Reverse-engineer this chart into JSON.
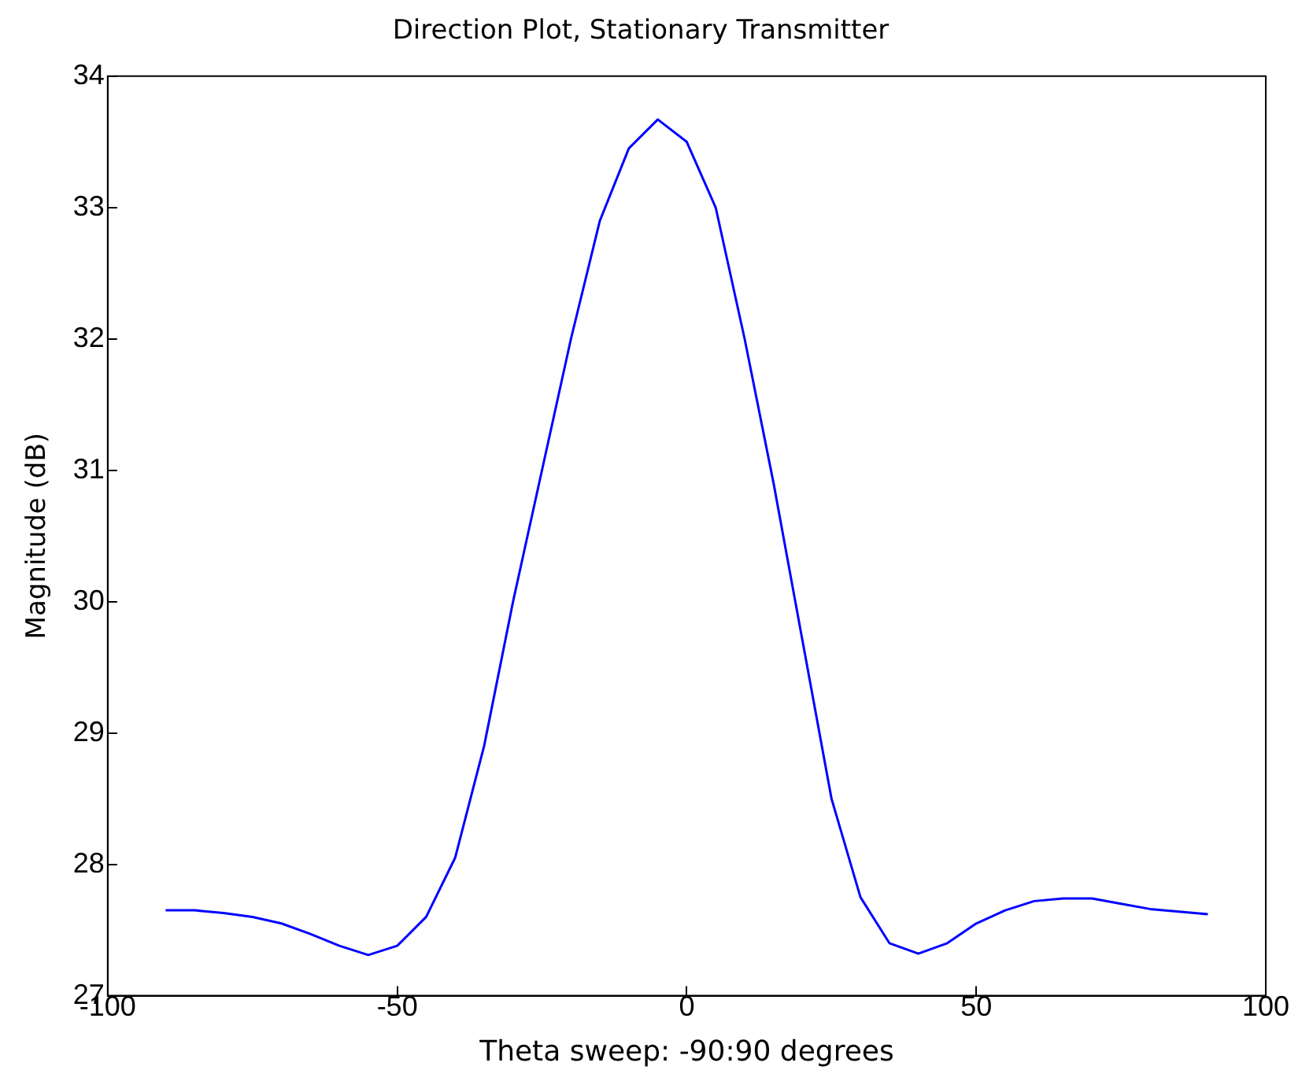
{
  "chart_data": {
    "type": "line",
    "title": "Direction Plot, Stationary Transmitter",
    "xlabel": "Theta sweep: -90:90 degrees",
    "ylabel": "Magnitude (dB)",
    "xlim": [
      -100,
      100
    ],
    "xticks": [
      -100,
      -50,
      0,
      50,
      100
    ],
    "ylim": [
      27,
      34
    ],
    "yticks": [
      27,
      28,
      29,
      30,
      31,
      32,
      33,
      34
    ],
    "grid": false,
    "legend": false,
    "marker": "none",
    "line_style": "solid",
    "series": [
      {
        "color": "#0000ff",
        "x": [
          -90,
          -85,
          -80,
          -75,
          -70,
          -65,
          -60,
          -55,
          -50,
          -45,
          -40,
          -35,
          -30,
          -25,
          -20,
          -15,
          -10,
          -5,
          0,
          5,
          10,
          15,
          20,
          25,
          30,
          35,
          40,
          45,
          50,
          55,
          60,
          65,
          70,
          75,
          80,
          85,
          90
        ],
        "values": [
          27.65,
          27.65,
          27.63,
          27.6,
          27.55,
          27.47,
          27.38,
          27.31,
          27.38,
          27.6,
          28.05,
          28.9,
          30.0,
          31.0,
          32.0,
          32.9,
          33.45,
          33.67,
          33.5,
          33.0,
          32.0,
          30.9,
          29.7,
          28.5,
          27.75,
          27.4,
          27.32,
          27.4,
          27.55,
          27.65,
          27.72,
          27.74,
          27.74,
          27.7,
          27.66,
          27.64,
          27.62
        ]
      }
    ]
  }
}
